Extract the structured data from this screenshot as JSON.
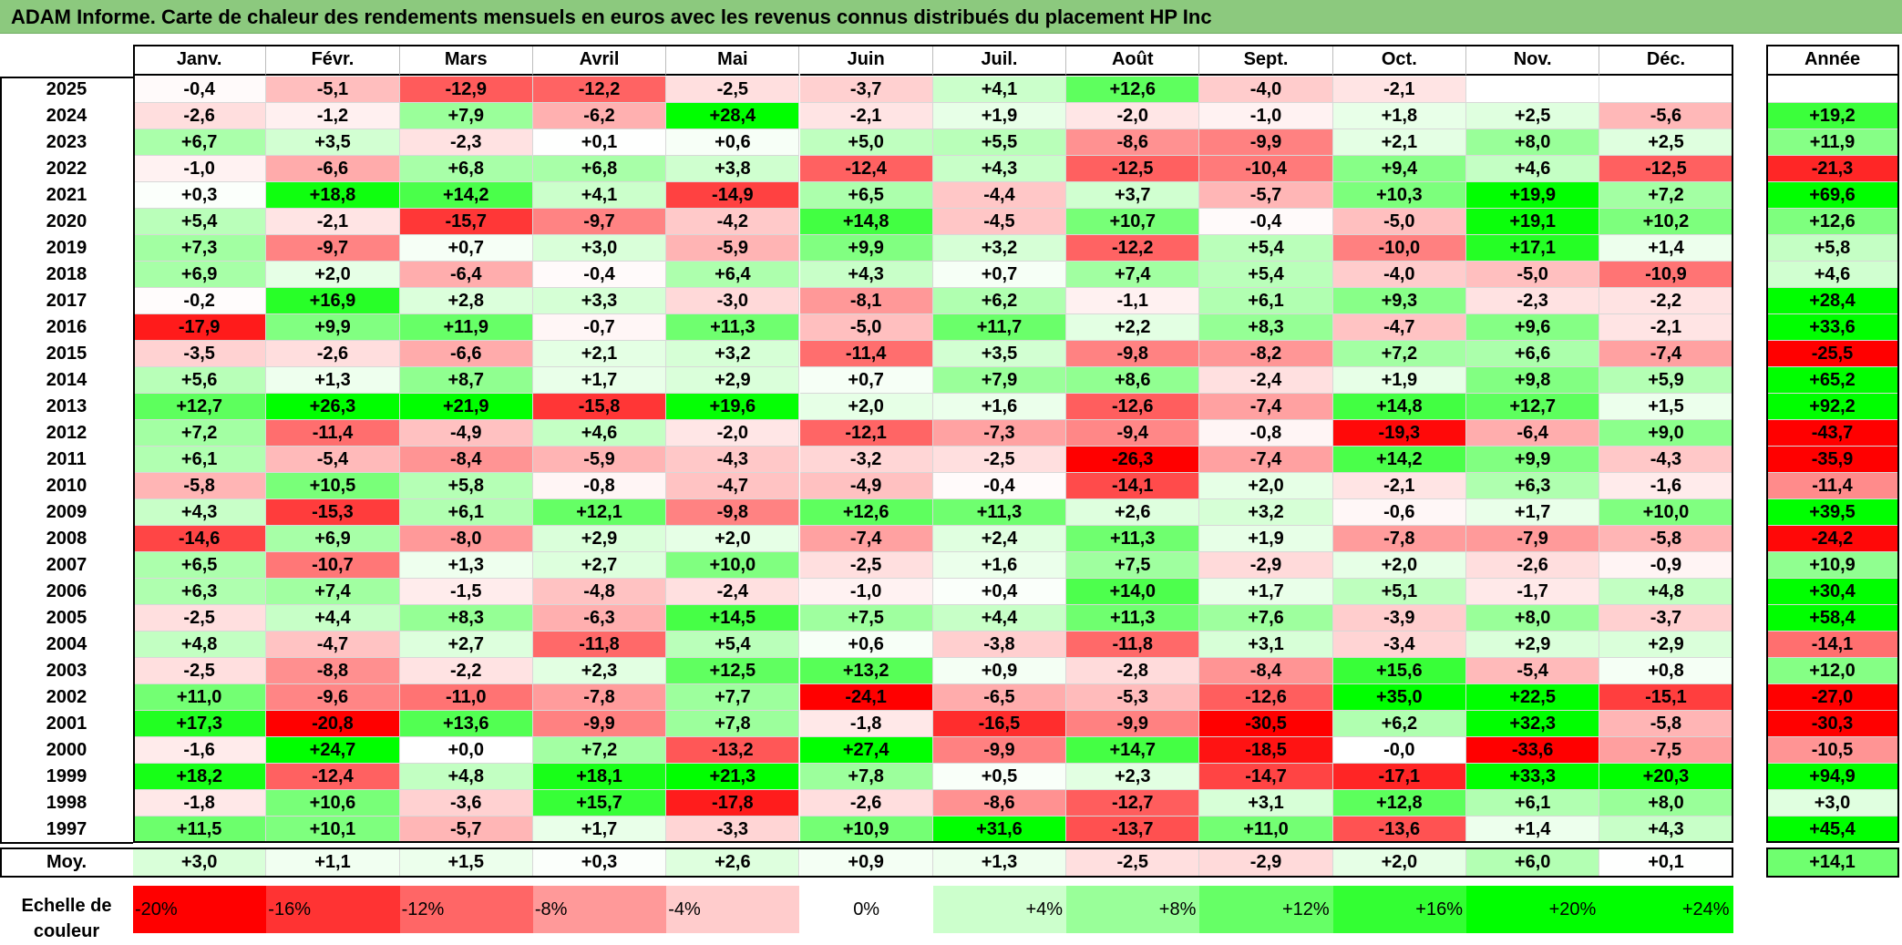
{
  "title": "ADAM Informe. Carte de chaleur des rendements mensuels en euros avec les revenus connus distribués du placement HP Inc",
  "chart_data": {
    "type": "heatmap",
    "title": "ADAM Informe. Carte de chaleur des rendements mensuels en euros avec les revenus connus distribués du placement HP Inc",
    "columns": [
      "Janv.",
      "Févr.",
      "Mars",
      "Avril",
      "Mai",
      "Juin",
      "Juil.",
      "Août",
      "Sept.",
      "Oct.",
      "Nov.",
      "Déc."
    ],
    "annual_header": "Année",
    "rows": [
      {
        "year": "2025",
        "values": [
          "-0,4",
          "-5,1",
          "-12,9",
          "-12,2",
          "-2,5",
          "-3,7",
          "+4,1",
          "+12,6",
          "-4,0",
          "-2,1",
          "",
          ""
        ],
        "annual": ""
      },
      {
        "year": "2024",
        "values": [
          "-2,6",
          "-1,2",
          "+7,9",
          "-6,2",
          "+28,4",
          "-2,1",
          "+1,9",
          "-2,0",
          "-1,0",
          "+1,8",
          "+2,5",
          "-5,6"
        ],
        "annual": "+19,2"
      },
      {
        "year": "2023",
        "values": [
          "+6,7",
          "+3,5",
          "-2,3",
          "+0,1",
          "+0,6",
          "+5,0",
          "+5,5",
          "-8,6",
          "-9,9",
          "+2,1",
          "+8,0",
          "+2,5"
        ],
        "annual": "+11,9"
      },
      {
        "year": "2022",
        "values": [
          "-1,0",
          "-6,6",
          "+6,8",
          "+6,8",
          "+3,8",
          "-12,4",
          "+4,3",
          "-12,5",
          "-10,4",
          "+9,4",
          "+4,6",
          "-12,5"
        ],
        "annual": "-21,3"
      },
      {
        "year": "2021",
        "values": [
          "+0,3",
          "+18,8",
          "+14,2",
          "+4,1",
          "-14,9",
          "+6,5",
          "-4,4",
          "+3,7",
          "-5,7",
          "+10,3",
          "+19,9",
          "+7,2"
        ],
        "annual": "+69,6"
      },
      {
        "year": "2020",
        "values": [
          "+5,4",
          "-2,1",
          "-15,7",
          "-9,7",
          "-4,2",
          "+14,8",
          "-4,5",
          "+10,7",
          "-0,4",
          "-5,0",
          "+19,1",
          "+10,2"
        ],
        "annual": "+12,6"
      },
      {
        "year": "2019",
        "values": [
          "+7,3",
          "-9,7",
          "+0,7",
          "+3,0",
          "-5,9",
          "+9,9",
          "+3,2",
          "-12,2",
          "+5,4",
          "-10,0",
          "+17,1",
          "+1,4"
        ],
        "annual": "+5,8"
      },
      {
        "year": "2018",
        "values": [
          "+6,9",
          "+2,0",
          "-6,4",
          "-0,4",
          "+6,4",
          "+4,3",
          "+0,7",
          "+7,4",
          "+5,4",
          "-4,0",
          "-5,0",
          "-10,9"
        ],
        "annual": "+4,6"
      },
      {
        "year": "2017",
        "values": [
          "-0,2",
          "+16,9",
          "+2,8",
          "+3,3",
          "-3,0",
          "-8,1",
          "+6,2",
          "-1,1",
          "+6,1",
          "+9,3",
          "-2,3",
          "-2,2"
        ],
        "annual": "+28,4"
      },
      {
        "year": "2016",
        "values": [
          "-17,9",
          "+9,9",
          "+11,9",
          "-0,7",
          "+11,3",
          "-5,0",
          "+11,7",
          "+2,2",
          "+8,3",
          "-4,7",
          "+9,6",
          "-2,1"
        ],
        "annual": "+33,6"
      },
      {
        "year": "2015",
        "values": [
          "-3,5",
          "-2,6",
          "-6,6",
          "+2,1",
          "+3,2",
          "-11,4",
          "+3,5",
          "-9,8",
          "-8,2",
          "+7,2",
          "+6,6",
          "-7,4"
        ],
        "annual": "-25,5"
      },
      {
        "year": "2014",
        "values": [
          "+5,6",
          "+1,3",
          "+8,7",
          "+1,7",
          "+2,9",
          "+0,7",
          "+7,9",
          "+8,6",
          "-2,4",
          "+1,9",
          "+9,8",
          "+5,9"
        ],
        "annual": "+65,2"
      },
      {
        "year": "2013",
        "values": [
          "+12,7",
          "+26,3",
          "+21,9",
          "-15,8",
          "+19,6",
          "+2,0",
          "+1,6",
          "-12,6",
          "-7,4",
          "+14,8",
          "+12,7",
          "+1,5"
        ],
        "annual": "+92,2"
      },
      {
        "year": "2012",
        "values": [
          "+7,2",
          "-11,4",
          "-4,9",
          "+4,6",
          "-2,0",
          "-12,1",
          "-7,3",
          "-9,4",
          "-0,8",
          "-19,3",
          "-6,4",
          "+9,0"
        ],
        "annual": "-43,7"
      },
      {
        "year": "2011",
        "values": [
          "+6,1",
          "-5,4",
          "-8,4",
          "-5,9",
          "-4,3",
          "-3,2",
          "-2,5",
          "-26,3",
          "-7,4",
          "+14,2",
          "+9,9",
          "-4,3"
        ],
        "annual": "-35,9"
      },
      {
        "year": "2010",
        "values": [
          "-5,8",
          "+10,5",
          "+5,8",
          "-0,8",
          "-4,7",
          "-4,9",
          "-0,4",
          "-14,1",
          "+2,0",
          "-2,1",
          "+6,3",
          "-1,6"
        ],
        "annual": "-11,4"
      },
      {
        "year": "2009",
        "values": [
          "+4,3",
          "-15,3",
          "+6,1",
          "+12,1",
          "-9,8",
          "+12,6",
          "+11,3",
          "+2,6",
          "+3,2",
          "-0,6",
          "+1,7",
          "+10,0"
        ],
        "annual": "+39,5"
      },
      {
        "year": "2008",
        "values": [
          "-14,6",
          "+6,9",
          "-8,0",
          "+2,9",
          "+2,0",
          "-7,4",
          "+2,4",
          "+11,3",
          "+1,9",
          "-7,8",
          "-7,9",
          "-5,8"
        ],
        "annual": "-24,2"
      },
      {
        "year": "2007",
        "values": [
          "+6,5",
          "-10,7",
          "+1,3",
          "+2,7",
          "+10,0",
          "-2,5",
          "+1,6",
          "+7,5",
          "-2,9",
          "+2,0",
          "-2,6",
          "-0,9"
        ],
        "annual": "+10,9"
      },
      {
        "year": "2006",
        "values": [
          "+6,3",
          "+7,4",
          "-1,5",
          "-4,8",
          "-2,4",
          "-1,0",
          "+0,4",
          "+14,0",
          "+1,7",
          "+5,1",
          "-1,7",
          "+4,8"
        ],
        "annual": "+30,4"
      },
      {
        "year": "2005",
        "values": [
          "-2,5",
          "+4,4",
          "+8,3",
          "-6,3",
          "+14,5",
          "+7,5",
          "+4,4",
          "+11,3",
          "+7,6",
          "-3,9",
          "+8,0",
          "-3,7"
        ],
        "annual": "+58,4"
      },
      {
        "year": "2004",
        "values": [
          "+4,8",
          "-4,7",
          "+2,7",
          "-11,8",
          "+5,4",
          "+0,6",
          "-3,8",
          "-11,8",
          "+3,1",
          "-3,4",
          "+2,9",
          "+2,9"
        ],
        "annual": "-14,1"
      },
      {
        "year": "2003",
        "values": [
          "-2,5",
          "-8,8",
          "-2,2",
          "+2,3",
          "+12,5",
          "+13,2",
          "+0,9",
          "-2,8",
          "-8,4",
          "+15,6",
          "-5,4",
          "+0,8"
        ],
        "annual": "+12,0"
      },
      {
        "year": "2002",
        "values": [
          "+11,0",
          "-9,6",
          "-11,0",
          "-7,8",
          "+7,7",
          "-24,1",
          "-6,5",
          "-5,3",
          "-12,6",
          "+35,0",
          "+22,5",
          "-15,1"
        ],
        "annual": "-27,0"
      },
      {
        "year": "2001",
        "values": [
          "+17,3",
          "-20,8",
          "+13,6",
          "-9,9",
          "+7,8",
          "-1,8",
          "-16,5",
          "-9,9",
          "-30,5",
          "+6,2",
          "+32,3",
          "-5,8"
        ],
        "annual": "-30,3"
      },
      {
        "year": "2000",
        "values": [
          "-1,6",
          "+24,7",
          "+0,0",
          "+7,2",
          "-13,2",
          "+27,4",
          "-9,9",
          "+14,7",
          "-18,5",
          "-0,0",
          "-33,6",
          "-7,5"
        ],
        "annual": "-10,5"
      },
      {
        "year": "1999",
        "values": [
          "+18,2",
          "-12,4",
          "+4,8",
          "+18,1",
          "+21,3",
          "+7,8",
          "+0,5",
          "+2,3",
          "-14,7",
          "-17,1",
          "+33,3",
          "+20,3"
        ],
        "annual": "+94,9"
      },
      {
        "year": "1998",
        "values": [
          "-1,8",
          "+10,6",
          "-3,6",
          "+15,7",
          "-17,8",
          "-2,6",
          "-8,6",
          "-12,7",
          "+3,1",
          "+12,8",
          "+6,1",
          "+8,0"
        ],
        "annual": "+3,0"
      },
      {
        "year": "1997",
        "values": [
          "+11,5",
          "+10,1",
          "-5,7",
          "+1,7",
          "-3,3",
          "+10,9",
          "+31,6",
          "-13,7",
          "+11,0",
          "-13,6",
          "+1,4",
          "+4,3"
        ],
        "annual": "+45,4"
      }
    ],
    "average": {
      "label": "Moy.",
      "values": [
        "+3,0",
        "+1,1",
        "+1,5",
        "+0,3",
        "+2,6",
        "+0,9",
        "+1,3",
        "-2,5",
        "-2,9",
        "+2,0",
        "+6,0",
        "+0,1"
      ],
      "annual": "+14,1"
    },
    "scale": {
      "label": "Echelle de couleur",
      "steps": [
        "-20%",
        "-16%",
        "-12%",
        "-8%",
        "-4%",
        "0%",
        "+4%",
        "+8%",
        "+12%",
        "+16%",
        "+20%",
        "+24%"
      ],
      "step_values": [
        -20,
        -16,
        -12,
        -8,
        -4,
        0,
        4,
        8,
        12,
        16,
        20,
        24
      ]
    },
    "colors": {
      "negative_max": "#ff0000",
      "neutral": "#ffffff",
      "positive_max": "#00ff00",
      "title_bg": "#8cc97e"
    }
  }
}
